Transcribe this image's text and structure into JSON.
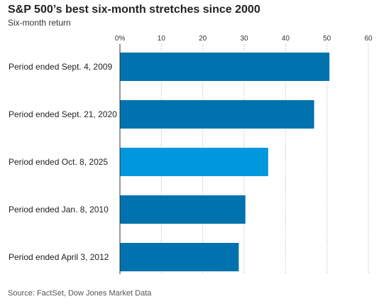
{
  "chart_data": {
    "type": "bar",
    "orientation": "horizontal",
    "title": "S&P 500’s best six-month stretches since 2000",
    "subtitle": "Six-month return",
    "source": "Source: FactSet, Dow Jones Market Data",
    "categories": [
      "Period ended Sept. 4, 2009",
      "Period ended Sept. 21, 2020",
      "Period ended Oct. 8, 2025",
      "Period ended Jan. 8, 2010",
      "Period ended April 3, 2012"
    ],
    "values": [
      50.6,
      46.9,
      35.8,
      30.3,
      28.7
    ],
    "highlight_index": 2,
    "xlim": [
      0,
      60
    ],
    "xticks": [
      0,
      10,
      20,
      30,
      40,
      50,
      60
    ],
    "xtick_labels": [
      "0%",
      "10",
      "20",
      "30",
      "40",
      "50",
      "60"
    ],
    "grid": true,
    "colors": {
      "bar": "#0072ad",
      "highlight": "#0097dc",
      "grid": "#aaaaaa"
    }
  }
}
